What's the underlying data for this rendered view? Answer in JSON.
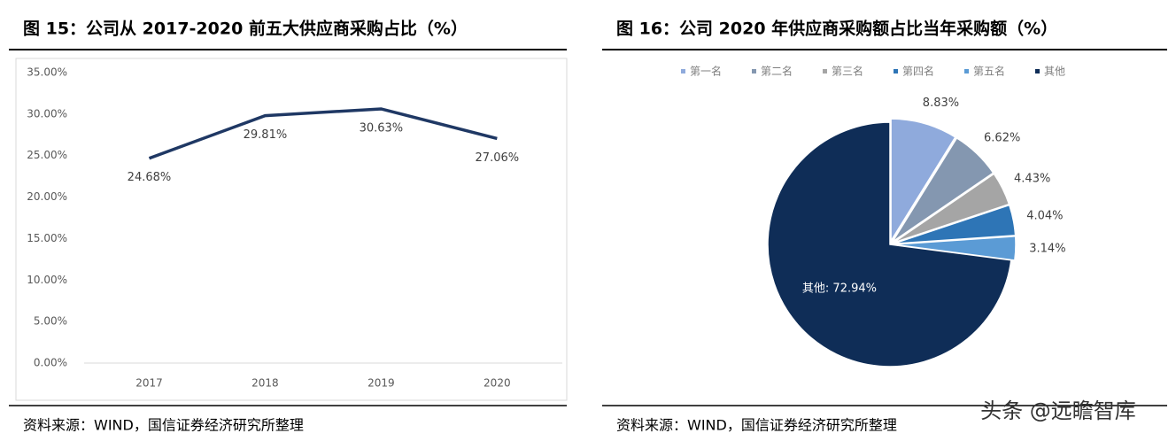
{
  "chart_data": [
    {
      "type": "line",
      "title": "图 15：公司从 2017-2020 前五大供应商采购占比（%）",
      "categories": [
        "2017",
        "2018",
        "2019",
        "2020"
      ],
      "values": [
        24.68,
        29.81,
        30.63,
        27.06
      ],
      "value_labels": [
        "24.68%",
        "29.81%",
        "30.63%",
        "27.06%"
      ],
      "color": "#1f3864",
      "ylim": [
        0,
        35
      ],
      "yticks": [
        {
          "value": 0,
          "label": "0.00%"
        },
        {
          "value": 5,
          "label": "5.00%"
        },
        {
          "value": 10,
          "label": "10.00%"
        },
        {
          "value": 15,
          "label": "15.00%"
        },
        {
          "value": 20,
          "label": "20.00%"
        },
        {
          "value": 25,
          "label": "25.00%"
        },
        {
          "value": 30,
          "label": "30.00%"
        },
        {
          "value": 35,
          "label": "35.00%"
        }
      ],
      "source": "资料来源：WIND，国信证券经济研究所整理"
    },
    {
      "type": "pie",
      "title": "图 16：公司 2020 年供应商采购额占比当年采购额（%）",
      "categories": [
        "第一名",
        "第二名",
        "第三名",
        "第四名",
        "第五名",
        "其他"
      ],
      "values": [
        8.83,
        6.62,
        4.43,
        4.04,
        3.14,
        72.94
      ],
      "value_labels": [
        "8.83%",
        "6.62%",
        "4.43%",
        "4.04%",
        "3.14%",
        "其他: 72.94%"
      ],
      "colors": [
        "#8faadc",
        "#8497b0",
        "#a5a5a5",
        "#2e75b6",
        "#5b9bd5",
        "#0f2d57"
      ],
      "legend": "top",
      "source": "资料来源：WIND，国信证券经济研究所整理"
    }
  ],
  "watermark": "头条 @远瞻智库"
}
